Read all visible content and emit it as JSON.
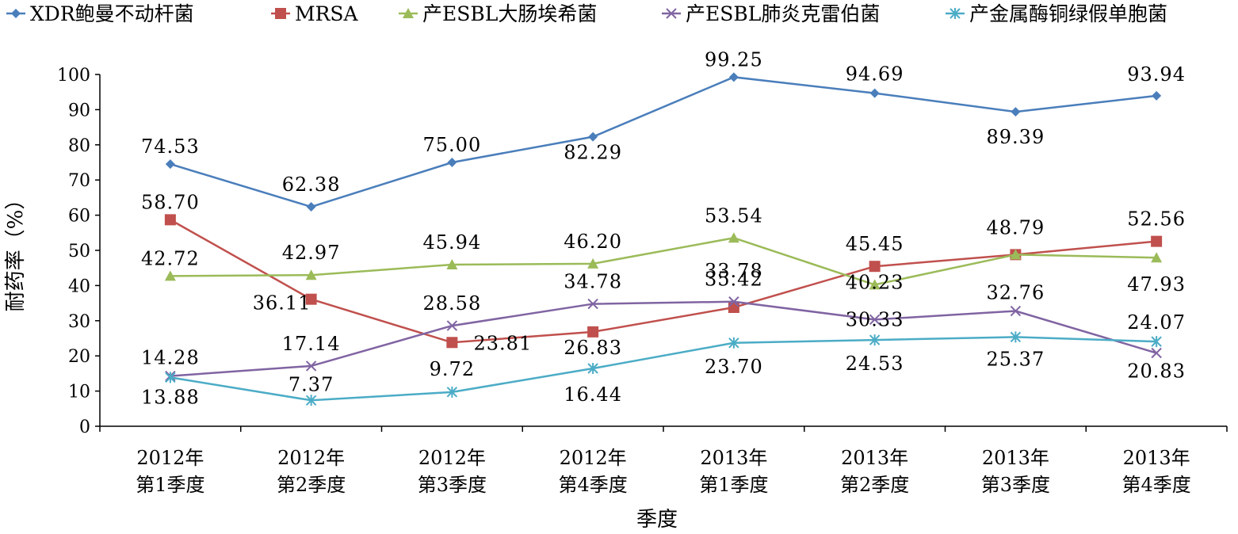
{
  "chart_data": {
    "type": "line",
    "xlabel": "季度",
    "ylabel": "耐药率（%）",
    "ylim": [
      0,
      100
    ],
    "y_ticks": [
      "0",
      "10",
      "20",
      "30",
      "40",
      "50",
      "60",
      "70",
      "80",
      "90",
      "100"
    ],
    "categories": [
      [
        "2012年",
        "第1季度"
      ],
      [
        "2012年",
        "第2季度"
      ],
      [
        "2012年",
        "第3季度"
      ],
      [
        "2012年",
        "第4季度"
      ],
      [
        "2013年",
        "第1季度"
      ],
      [
        "2013年",
        "第2季度"
      ],
      [
        "2013年",
        "第3季度"
      ],
      [
        "2013年",
        "第4季度"
      ]
    ],
    "legend_position": "top",
    "grid": false,
    "series": [
      {
        "name": "XDR鲍曼不动杆菌",
        "color": "#4a7ebb",
        "marker": "diamond",
        "values": [
          74.53,
          62.38,
          75.0,
          82.29,
          99.25,
          94.69,
          89.39,
          93.94
        ],
        "labels": [
          "74.53",
          "62.38",
          "75.00",
          "82.29",
          "99.25",
          "94.69",
          "89.39",
          "93.94"
        ]
      },
      {
        "name": "MRSA",
        "color": "#c0504d",
        "marker": "square",
        "values": [
          58.7,
          36.11,
          23.81,
          26.83,
          33.78,
          45.45,
          48.79,
          52.56
        ],
        "labels": [
          "58.70",
          "36.11",
          "23.81",
          "26.83",
          "33.78",
          "45.45",
          "48.79",
          "52.56"
        ]
      },
      {
        "name": "产ESBL大肠埃希菌",
        "color": "#9bbb59",
        "marker": "triangle",
        "values": [
          42.72,
          42.97,
          45.94,
          46.2,
          53.54,
          40.23,
          48.79,
          47.93
        ],
        "labels": [
          "42.72",
          "42.97",
          "45.94",
          "46.20",
          "53.54",
          "40.23",
          "",
          "47.93"
        ]
      },
      {
        "name": "产ESBL肺炎克雷伯菌",
        "color": "#8064a2",
        "marker": "x",
        "values": [
          14.28,
          17.14,
          28.58,
          34.78,
          35.42,
          30.33,
          32.76,
          20.83
        ],
        "labels": [
          "14.28",
          "17.14",
          "28.58",
          "34.78",
          "35.42",
          "30.33",
          "32.76",
          "20.83"
        ]
      },
      {
        "name": "产金属酶铜绿假单胞菌",
        "color": "#4bacc6",
        "marker": "star",
        "values": [
          13.88,
          7.37,
          9.72,
          16.44,
          23.7,
          24.53,
          25.37,
          24.07
        ],
        "labels": [
          "13.88",
          "7.37",
          "9.72",
          "16.44",
          "23.70",
          "24.53",
          "25.37",
          "24.07"
        ]
      }
    ]
  }
}
